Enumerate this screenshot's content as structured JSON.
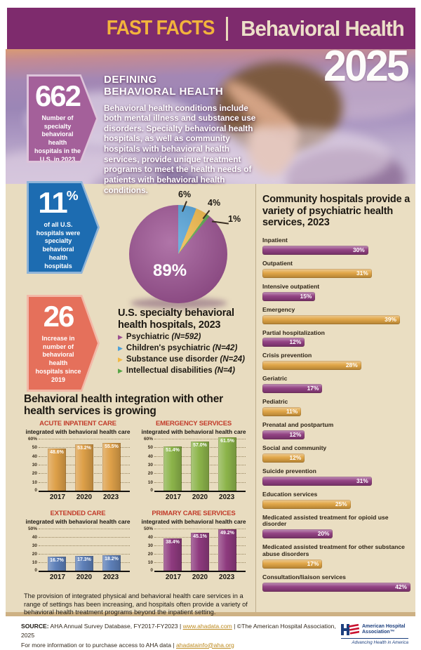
{
  "header": {
    "kicker": "FAST FACTS",
    "title": "Behavioral Health",
    "year": "2025"
  },
  "defining": {
    "title_line1": "DEFINING",
    "title_line2": "BEHAVIORAL HEALTH",
    "body": "Behavioral health conditions include both mental illness and substance use disorders. Specialty behavioral health hospitals, as well as community hospitals with behavioral health services, provide unique treatment programs to meet the health needs of patients with behavioral health conditions."
  },
  "stat_badges": [
    {
      "value": "662",
      "suffix": "",
      "label": "Number of specialty behavioral health hospitals in the U.S. in 2023",
      "color": "#a4609a"
    },
    {
      "value": "11",
      "suffix": "%",
      "label": "of all U.S. hospitals were specialty behavioral health hospitals",
      "color": "#1d6cb1"
    },
    {
      "value": "26",
      "suffix": "",
      "label": "Increase in number of behavioral health hospitals since 2019",
      "color": "#e5705b"
    }
  ],
  "integration": {
    "heading": "Behavioral health integration with other health services is growing",
    "caption": "The provision of integrated physical and behavioral health care services in a range of settings has been increasing, and hospitals often provide a variety of behavioral health treatment programs beyond the inpatient setting."
  },
  "footer": {
    "source_bold": "SOURCE:",
    "source_text": " AHA Annual Survey Database, FY2017-FY2023  |  ",
    "source_link": "www.ahadata.com",
    "source_tail": "  |  ©The American Hospital Association, 2025",
    "info_text": "For more information or to purchase access to AHA data  |  ",
    "info_link": "ahadatainfo@aha.org",
    "logo_line1": "American Hospital",
    "logo_line2": "Association™",
    "logo_tagline": "Advancing Health in America"
  },
  "chart_data": [
    {
      "type": "pie",
      "title": "U.S. specialty behavioral health hospitals, 2023",
      "labels": [
        "Psychiatric",
        "Children's psychiatric",
        "Substance use disorder",
        "Intellectual disabilities"
      ],
      "values": [
        89,
        6,
        4,
        1
      ],
      "value_labels": [
        "89%",
        "6%",
        "4%",
        "1%"
      ],
      "colors": [
        "#9a4e90",
        "#4da0d8",
        "#f2b843",
        "#56a546"
      ],
      "legend": [
        {
          "label": "Psychiatric ",
          "n": "(N=592)"
        },
        {
          "label": "Children's psychiatric ",
          "n": "(N=42)"
        },
        {
          "label": "Substance use disorder ",
          "n": "(N=24)"
        },
        {
          "label": "Intellectual disabilities ",
          "n": "(N=4)"
        }
      ]
    },
    {
      "type": "bar",
      "orientation": "horizontal",
      "title": "Community hospitals provide a variety of psychiatric health services, 2023",
      "categories": [
        "Inpatient",
        "Outpatient",
        "Intensive outpatient",
        "Emergency",
        "Partial hospitalization",
        "Crisis prevention",
        "Geriatric",
        "Pediatric",
        "Prenatal and postpartum",
        "Social and community",
        "Suicide prevention",
        "Education services",
        "Medicated assisted treatment for opioid use disorder",
        "Medicated assisted treatment for other substance abuse disorders",
        "Consultation/liaison services"
      ],
      "values": [
        30,
        31,
        15,
        39,
        12,
        28,
        17,
        11,
        12,
        12,
        31,
        25,
        20,
        17,
        42
      ],
      "value_labels": [
        "30%",
        "31%",
        "15%",
        "39%",
        "12%",
        "28%",
        "17%",
        "11%",
        "12%",
        "12%",
        "31%",
        "25%",
        "20%",
        "17%",
        "42%"
      ],
      "xlim": [
        0,
        42
      ],
      "bar_colors": [
        "#8e3a7e",
        "#dfa23f"
      ]
    },
    {
      "type": "bar",
      "title": "ACUTE INPATIENT CARE",
      "subtitle": "integrated with behavioral health care",
      "categories": [
        "2017",
        "2020",
        "2023"
      ],
      "values": [
        48.6,
        53.2,
        55.5
      ],
      "value_labels": [
        "48.6%",
        "53.2%",
        "55.5%"
      ],
      "ticks": [
        "60%",
        "50",
        "40",
        "30",
        "20",
        "10",
        "0"
      ],
      "ylim": [
        0,
        60
      ],
      "color": "#dd9f48"
    },
    {
      "type": "bar",
      "title": "EMERGENCY SERVICES",
      "subtitle": "integrated with behavioral health care",
      "categories": [
        "2017",
        "2020",
        "2023"
      ],
      "values": [
        51.4,
        57.0,
        61.5
      ],
      "value_labels": [
        "51.4%",
        "57.0%",
        "61.5%"
      ],
      "ticks": [
        "60%",
        "50",
        "40",
        "30",
        "20",
        "10",
        "0"
      ],
      "ylim": [
        0,
        60
      ],
      "color": "#8cb44a"
    },
    {
      "type": "bar",
      "title": "EXTENDED CARE",
      "subtitle": "integrated with behavioral health care",
      "categories": [
        "2017",
        "2020",
        "2023"
      ],
      "values": [
        16.7,
        17.3,
        18.2
      ],
      "value_labels": [
        "16.7%",
        "17.3%",
        "18.2%"
      ],
      "ticks": [
        "50%",
        "40",
        "30",
        "20",
        "10",
        "0"
      ],
      "ylim": [
        0,
        50
      ],
      "color": "#5d7fb8"
    },
    {
      "type": "bar",
      "title": "PRIMARY CARE SERVICES",
      "subtitle": "integrated with behavioral health care",
      "categories": [
        "2017",
        "2020",
        "2023"
      ],
      "values": [
        38.4,
        45.1,
        49.2
      ],
      "value_labels": [
        "38.4%",
        "45.1%",
        "49.2%"
      ],
      "ticks": [
        "50%",
        "40",
        "30",
        "20",
        "10",
        "0"
      ],
      "ylim": [
        0,
        50
      ],
      "color": "#8e3a7e"
    }
  ]
}
